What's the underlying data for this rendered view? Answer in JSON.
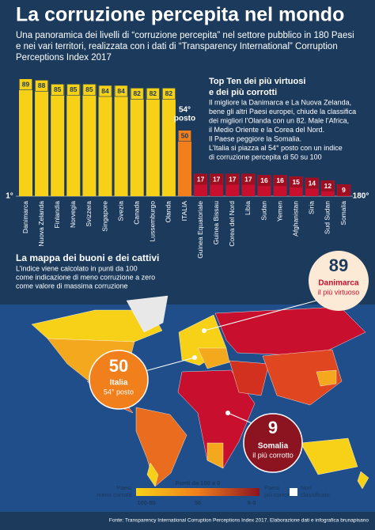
{
  "chart_data": {
    "type": "bar",
    "title": "La corruzione percepita nel mondo",
    "subtitle_lines": [
      "Una panoramica dei livelli di “corruzione percepita” nel settore pubblico in 180 Paesi",
      "e nei vari territori, realizzata con i dati di “Transparency International” Corruption",
      "Perceptions Index 2017"
    ],
    "categories": [
      "Danimarca",
      "Nuova Zelanda",
      "Finlandia",
      "Norvegia",
      "Svizzera",
      "Singapore",
      "Svezia",
      "Canada",
      "Lussemburgo",
      "Olanda",
      "ITALIA",
      "Guinea Equatoriale",
      "Guinea Bissau",
      "Corea del Nord",
      "Libia",
      "Sudan",
      "Yemen",
      "Afghanistan",
      "Siria",
      "Sud Sudan",
      "Somalia"
    ],
    "values": [
      89,
      88,
      85,
      85,
      85,
      84,
      84,
      82,
      82,
      82,
      50,
      17,
      17,
      17,
      17,
      16,
      16,
      15,
      14,
      12,
      9
    ],
    "colors": [
      "#f7d117",
      "#f7d117",
      "#f7d117",
      "#f7d117",
      "#f7d117",
      "#f7d117",
      "#f7d117",
      "#f7d117",
      "#f7d117",
      "#f7d117",
      "#f07f1c",
      "#c8102e",
      "#c8102e",
      "#c8102e",
      "#c8102e",
      "#c8102e",
      "#c8102e",
      "#c8102e",
      "#c8102e",
      "#c8102e",
      "#c8102e"
    ],
    "ylim": [
      0,
      90
    ],
    "rank_labels": [
      "1°",
      "180°"
    ],
    "annotation_lines": [
      "54°",
      "posto"
    ]
  },
  "panel": {
    "title_lines": [
      "Top Ten dei più virtuosi",
      "e dei più corrotti"
    ],
    "text_lines": [
      "Il migliore la Danimarca e La Nuova Zelanda,",
      "bene gli altri Paesi europei, chiude la classifica",
      "dei migliori l’Olanda con un 82. Male l’Africa,",
      "il Medio Oriente e la Corea del Nord.",
      "Il Paese peggiore la Somalia.",
      "L’Italia si piazza al 54° posto con un indice",
      "di corruzione percepita di 50 su 100"
    ]
  },
  "map": {
    "title": "La mappa dei buoni e dei cattivi",
    "text_lines": [
      "L’indice viene calcolato in punti da 100",
      "come indicazione di meno corruzione a zero",
      "come valore di massima corruzione"
    ],
    "callouts": [
      {
        "number": "89",
        "name": "Danimarca",
        "note": "il più virtuoso"
      },
      {
        "number": "50",
        "name": "Italia",
        "note": "54° posto"
      },
      {
        "number": "9",
        "name": "Somalia",
        "note": "il più corrotto"
      }
    ],
    "legend": {
      "title": "Punti da 100 a 0",
      "left_lines": [
        "Paesi",
        "meno corrotti"
      ],
      "right_lines": [
        "Paesi",
        "più corrotti"
      ],
      "unclassified_lines": [
        "Non",
        "classificato"
      ],
      "scale_labels": [
        "100-90",
        "50",
        "9-0"
      ]
    }
  },
  "source": "Fonte: Transparency International Corruption Perceptions Index 2017. Elaborazione dati e infografica brunapisano"
}
